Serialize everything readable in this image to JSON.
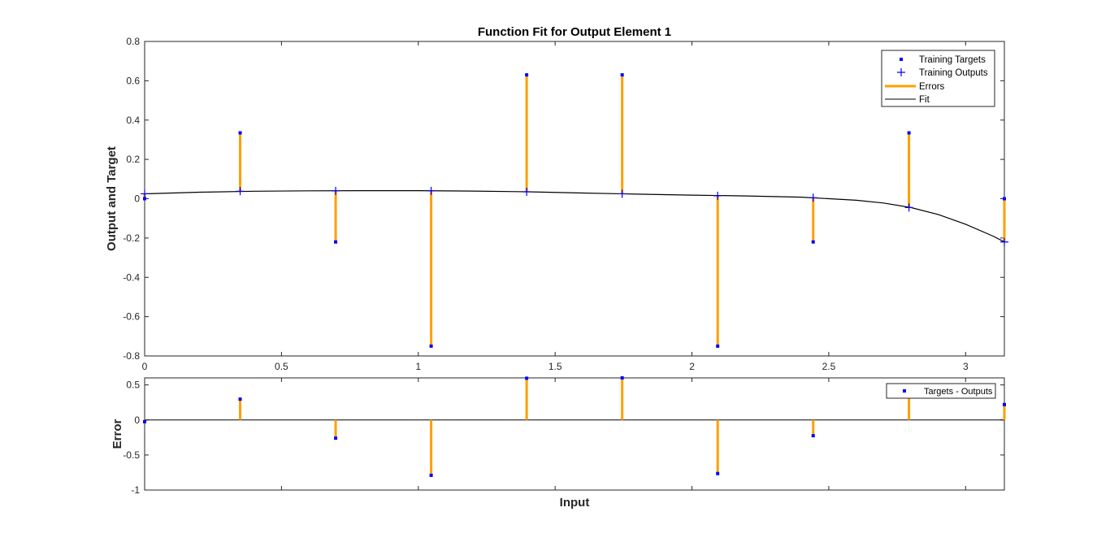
{
  "chart_data": [
    {
      "type": "scatter",
      "title": "Function Fit for Output Element 1",
      "xlabel": "",
      "ylabel": "Output and Target",
      "xlim": [
        0,
        3.1416
      ],
      "ylim": [
        -0.8,
        0.8
      ],
      "x_ticks": [
        0,
        0.5,
        1,
        1.5,
        2,
        2.5,
        3
      ],
      "x_tick_labels": [
        "0",
        "0.5",
        "1",
        "1.5",
        "2",
        "2.5",
        "3"
      ],
      "y_ticks": [
        -0.8,
        -0.6,
        -0.4,
        -0.2,
        0,
        0.2,
        0.4,
        0.6,
        0.8
      ],
      "y_tick_labels": [
        "-0.8",
        "-0.6",
        "-0.4",
        "-0.2",
        "0",
        "0.2",
        "0.4",
        "0.6",
        "0.8"
      ],
      "x": [
        0,
        0.349,
        0.698,
        1.047,
        1.396,
        1.745,
        2.094,
        2.443,
        2.793,
        3.1416
      ],
      "series": [
        {
          "name": "Training Targets",
          "values": [
            0.0,
            0.335,
            -0.22,
            -0.75,
            0.63,
            0.63,
            -0.75,
            -0.22,
            0.335,
            0.0
          ]
        },
        {
          "name": "Training Outputs",
          "values": [
            0.025,
            0.038,
            0.04,
            0.04,
            0.035,
            0.025,
            0.015,
            0.005,
            -0.045,
            -0.22
          ]
        },
        {
          "name": "Errors"
        },
        {
          "name": "Fit",
          "x": [
            0,
            0.2,
            0.4,
            0.6,
            0.8,
            1.0,
            1.2,
            1.4,
            1.6,
            1.8,
            2.0,
            2.2,
            2.4,
            2.6,
            2.7,
            2.8,
            2.9,
            3.0,
            3.1,
            3.1416
          ],
          "values": [
            0.025,
            0.033,
            0.038,
            0.04,
            0.041,
            0.041,
            0.039,
            0.035,
            0.029,
            0.023,
            0.018,
            0.014,
            0.008,
            -0.008,
            -0.022,
            -0.045,
            -0.08,
            -0.13,
            -0.19,
            -0.22
          ]
        }
      ],
      "legend": {
        "placement": "top-right"
      },
      "grid": false
    },
    {
      "type": "scatter",
      "title": "",
      "xlabel": "Input",
      "ylabel": "Error",
      "xlim": [
        0,
        3.1416
      ],
      "ylim": [
        -1,
        0.6
      ],
      "y_ticks": [
        -1,
        -0.5,
        0,
        0.5
      ],
      "y_tick_labels": [
        "-1",
        "-0.5",
        "0",
        "0.5"
      ],
      "x_ticks": [
        0,
        0.5,
        1,
        1.5,
        2,
        2.5,
        3
      ],
      "x": [
        0,
        0.349,
        0.698,
        1.047,
        1.396,
        1.745,
        2.094,
        2.443,
        2.793,
        3.1416
      ],
      "series": [
        {
          "name": "Targets - Outputs",
          "values": [
            -0.025,
            0.297,
            -0.26,
            -0.79,
            0.595,
            0.605,
            -0.765,
            -0.225,
            0.38,
            0.22
          ]
        }
      ],
      "legend": {
        "placement": "top-right"
      },
      "grid": false
    }
  ],
  "colors": {
    "marker": "#0000ff",
    "error_line": "#ff9f00",
    "fit_line": "#000000",
    "axes": "#262626"
  }
}
